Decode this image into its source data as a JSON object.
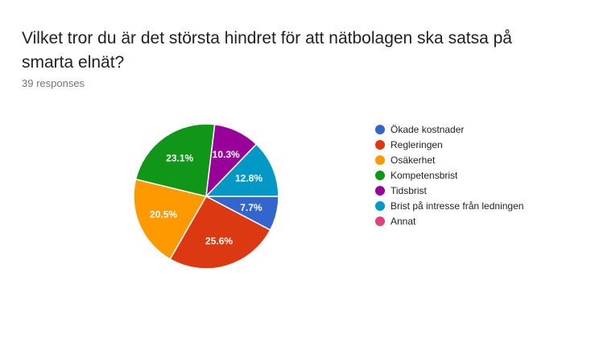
{
  "question": {
    "title": "Vilket tror du är det största hindret för att nätbolagen ska satsa på smarta elnät?",
    "responses": "39 responses"
  },
  "chart_data": {
    "type": "pie",
    "title": "Vilket tror du är det största hindret för att nätbolagen ska satsa på smarta elnät?",
    "total_responses": 39,
    "legend_position": "right",
    "series": [
      {
        "name": "Ökade kostnader",
        "value": 7.7,
        "label": "7.7%",
        "color": "#3366cc"
      },
      {
        "name": "Regleringen",
        "value": 25.6,
        "label": "25.6%",
        "color": "#dc3912"
      },
      {
        "name": "Osäkerhet",
        "value": 20.5,
        "label": "20.5%",
        "color": "#ff9900"
      },
      {
        "name": "Kompetensbrist",
        "value": 23.1,
        "label": "23.1%",
        "color": "#109618"
      },
      {
        "name": "Tidsbrist",
        "value": 10.3,
        "label": "10.3%",
        "color": "#990099"
      },
      {
        "name": "Brist på intresse från ledningen",
        "value": 12.8,
        "label": "12.8%",
        "color": "#0099c6"
      },
      {
        "name": "Annat",
        "value": 0,
        "label": "",
        "color": "#dd4477"
      }
    ]
  }
}
